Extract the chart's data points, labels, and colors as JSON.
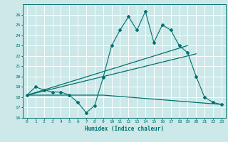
{
  "xlabel": "Humidex (Indice chaleur)",
  "ylabel": "",
  "bg_color": "#cce8e8",
  "grid_color": "#ffffff",
  "line_color": "#007070",
  "xlim": [
    -0.5,
    23.5
  ],
  "ylim": [
    16,
    27
  ],
  "yticks": [
    16,
    17,
    18,
    19,
    20,
    21,
    22,
    23,
    24,
    25,
    26
  ],
  "xticks": [
    0,
    1,
    2,
    3,
    4,
    5,
    6,
    7,
    8,
    9,
    10,
    11,
    12,
    13,
    14,
    15,
    16,
    17,
    18,
    19,
    20,
    21,
    22,
    23
  ],
  "series1_x": [
    0,
    1,
    2,
    3,
    4,
    5,
    6,
    7,
    8,
    9,
    10,
    11,
    12,
    13,
    14,
    15,
    16,
    17,
    18,
    19,
    20,
    21,
    22,
    23
  ],
  "series1_y": [
    18.2,
    19.0,
    18.7,
    18.5,
    18.5,
    18.2,
    17.5,
    16.5,
    17.2,
    19.9,
    23.0,
    24.5,
    25.8,
    24.5,
    26.3,
    23.3,
    25.0,
    24.5,
    23.0,
    22.3,
    20.0,
    18.0,
    17.5,
    17.3
  ],
  "series2_x": [
    0,
    19
  ],
  "series2_y": [
    18.2,
    23.0
  ],
  "series3_x": [
    0,
    20
  ],
  "series3_y": [
    18.2,
    22.2
  ],
  "series4_x": [
    0,
    9,
    23
  ],
  "series4_y": [
    18.2,
    18.2,
    17.3
  ]
}
